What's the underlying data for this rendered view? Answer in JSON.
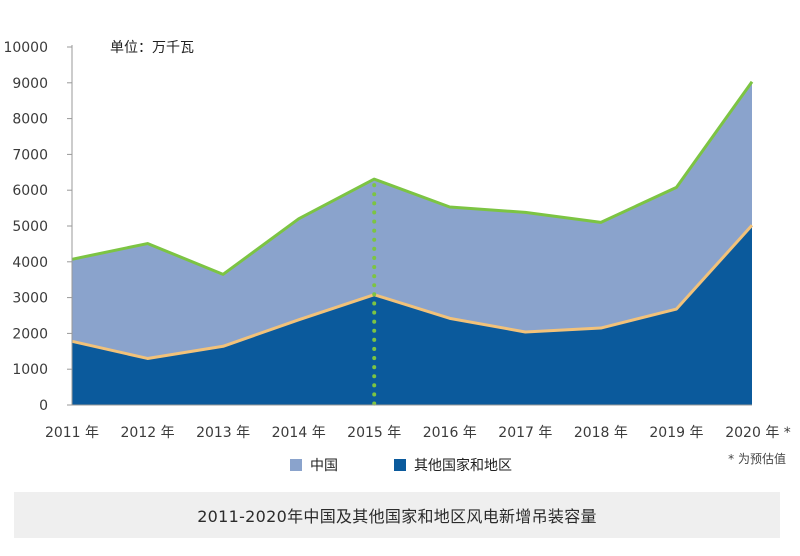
{
  "chart_data": {
    "type": "area",
    "stacked": true,
    "unit_label": "单位：万千瓦",
    "categories": [
      "2011 年",
      "2012 年",
      "2013 年",
      "2014 年",
      "2015 年",
      "2016 年",
      "2017 年",
      "2018 年",
      "2019 年",
      "2020 年 *"
    ],
    "series": [
      {
        "name": "中国",
        "values": [
          2290,
          3210,
          2010,
          2820,
          3230,
          3110,
          3340,
          2950,
          3400,
          4010
        ],
        "color": "#8aa3cc"
      },
      {
        "name": "其他国家和地区",
        "values": [
          1780,
          1300,
          1640,
          2380,
          3080,
          2420,
          2040,
          2150,
          2680,
          5020
        ],
        "color": "#0b5a9c"
      }
    ],
    "totals": [
      4070,
      4510,
      3650,
      5200,
      6310,
      5530,
      5380,
      5100,
      6080,
      9030
    ],
    "yticks": [
      0,
      1000,
      2000,
      3000,
      4000,
      5000,
      6000,
      7000,
      8000,
      9000,
      10000
    ],
    "ylim": [
      0,
      10000
    ],
    "highlight_category": "2015 年",
    "line_colors": {
      "total": "#7cc443",
      "boundary": "#f2c27a",
      "highlight": "#7cc443"
    },
    "legend_position": "bottom",
    "note": "* 为预估值",
    "caption": "2011-2020年中国及其他国家和地区风电新增吊装容量"
  }
}
